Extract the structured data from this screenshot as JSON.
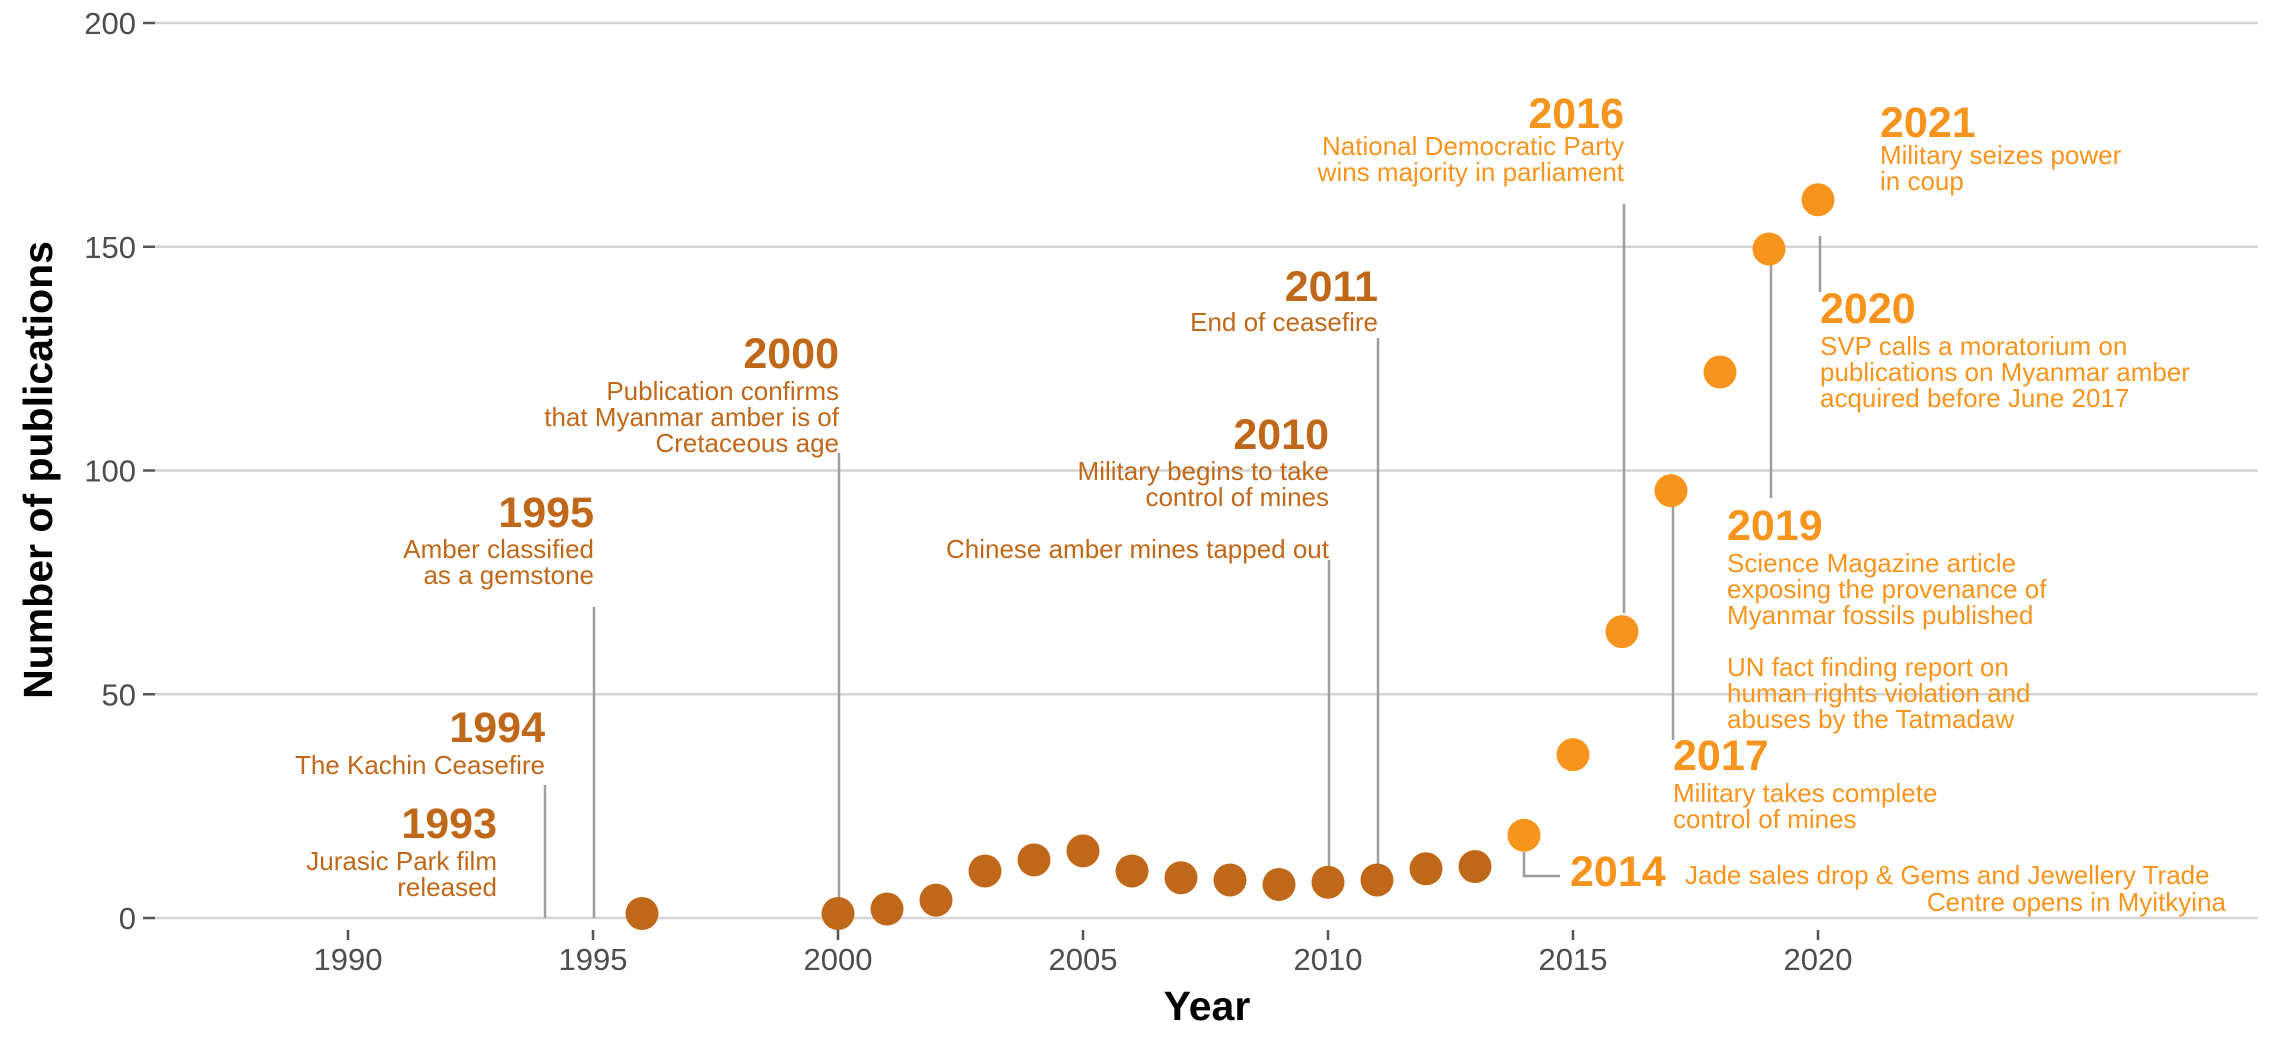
{
  "chart_data": {
    "type": "scatter",
    "title": "",
    "xlabel": "Year",
    "ylabel": "Number of publications",
    "xlim": [
      1986,
      2029
    ],
    "ylim": [
      0,
      200
    ],
    "x_ticks": [
      1990,
      1995,
      2000,
      2005,
      2010,
      2015,
      2020
    ],
    "y_ticks": [
      0,
      50,
      100,
      150,
      200
    ],
    "grid": "horizontal",
    "colors": {
      "early": "#c0681a",
      "late": "#f7941d",
      "leader": "#9e9e9e",
      "grid": "#d4d4d4"
    },
    "points": [
      {
        "x": 1996,
        "y": 1,
        "color": "early"
      },
      {
        "x": 2000,
        "y": 1,
        "color": "early"
      },
      {
        "x": 2001,
        "y": 2,
        "color": "early"
      },
      {
        "x": 2002,
        "y": 4,
        "color": "early"
      },
      {
        "x": 2003,
        "y": 10.5,
        "color": "early"
      },
      {
        "x": 2004,
        "y": 13,
        "color": "early"
      },
      {
        "x": 2005,
        "y": 15,
        "color": "early"
      },
      {
        "x": 2006,
        "y": 10.5,
        "color": "early"
      },
      {
        "x": 2007,
        "y": 9,
        "color": "early"
      },
      {
        "x": 2008,
        "y": 8.5,
        "color": "early"
      },
      {
        "x": 2009,
        "y": 7.5,
        "color": "early"
      },
      {
        "x": 2010,
        "y": 8,
        "color": "early"
      },
      {
        "x": 2011,
        "y": 8.5,
        "color": "early"
      },
      {
        "x": 2012,
        "y": 11,
        "color": "early"
      },
      {
        "x": 2013,
        "y": 11.5,
        "color": "early"
      },
      {
        "x": 2014,
        "y": 18.5,
        "color": "late"
      },
      {
        "x": 2015,
        "y": 36.5,
        "color": "late"
      },
      {
        "x": 2016,
        "y": 64,
        "color": "late"
      },
      {
        "x": 2017,
        "y": 95.5,
        "color": "late"
      },
      {
        "x": 2018,
        "y": 122,
        "color": "late"
      },
      {
        "x": 2019,
        "y": 149.5,
        "color": "late"
      },
      {
        "x": 2020,
        "y": 160.5,
        "color": "late"
      }
    ],
    "annotations": [
      {
        "id": "1993",
        "year": "1993",
        "color": "early",
        "lines": [
          "Jurasic Park film",
          "released"
        ]
      },
      {
        "id": "1994",
        "year": "1994",
        "color": "early",
        "lines": [
          "The Kachin Ceasefire"
        ]
      },
      {
        "id": "1995",
        "year": "1995",
        "color": "early",
        "lines": [
          "Amber classified",
          "as a gemstone"
        ]
      },
      {
        "id": "2000",
        "year": "2000",
        "color": "early",
        "lines": [
          "Publication confirms",
          "that Myanmar amber is of",
          "Cretaceous age"
        ]
      },
      {
        "id": "2010",
        "year": "2010",
        "color": "early",
        "lines": [
          "Military begins to take",
          "control of mines",
          "",
          "Chinese amber mines tapped out"
        ]
      },
      {
        "id": "2011",
        "year": "2011",
        "color": "early",
        "lines": [
          "End of ceasefire"
        ]
      },
      {
        "id": "2014",
        "year": "2014",
        "color": "late",
        "lines": [
          "Jade sales drop & Gems and Jewellery Trade",
          "Centre opens in Myitkyina"
        ]
      },
      {
        "id": "2016",
        "year": "2016",
        "color": "late",
        "lines": [
          "National Democratic Party",
          "wins majority in parliament"
        ]
      },
      {
        "id": "2017",
        "year": "2017",
        "color": "late",
        "lines": [
          "Military takes complete",
          "control of mines"
        ]
      },
      {
        "id": "2019",
        "year": "2019",
        "color": "late",
        "lines": [
          "Science Magazine article",
          "exposing the provenance of",
          "Myanmar fossils published",
          "",
          "UN fact finding report on",
          "human rights violation and",
          "abuses by the Tatmadaw"
        ]
      },
      {
        "id": "2020",
        "year": "2020",
        "color": "late",
        "lines": [
          "SVP calls a moratorium on",
          "publications on Myanmar amber",
          "acquired before June 2017"
        ]
      },
      {
        "id": "2021",
        "year": "2021",
        "color": "late",
        "lines": [
          "Military seizes power",
          "in coup"
        ]
      }
    ]
  }
}
